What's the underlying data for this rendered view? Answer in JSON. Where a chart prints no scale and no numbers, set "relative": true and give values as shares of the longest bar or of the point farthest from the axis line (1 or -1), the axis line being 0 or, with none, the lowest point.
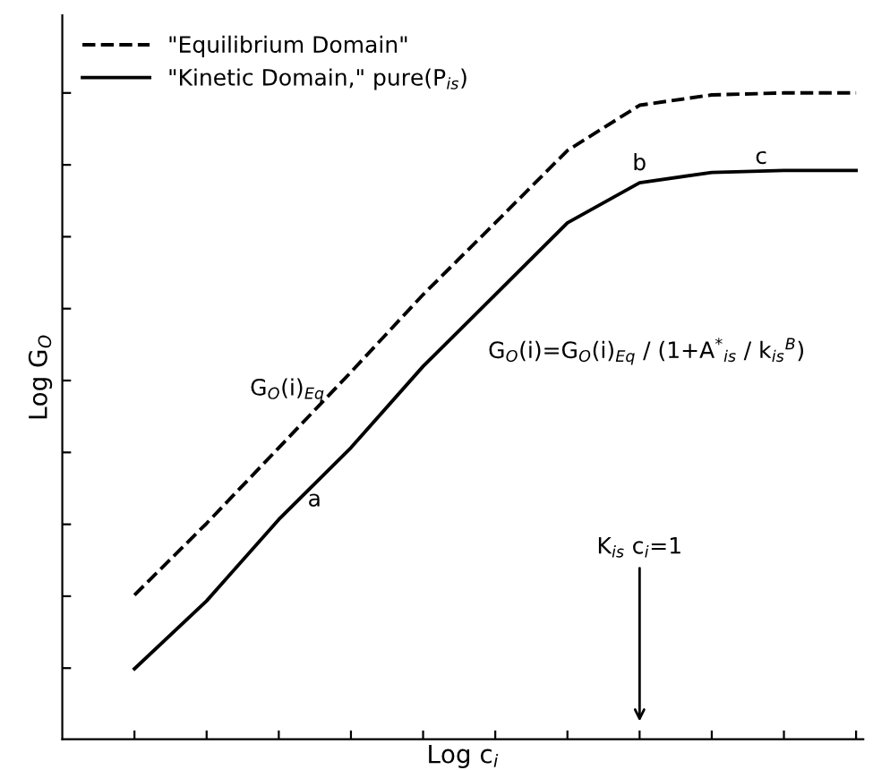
{
  "chart_data": {
    "type": "line",
    "relative": true,
    "xlabel": "Log c$_{i}$",
    "ylabel": "Log G$_{O}$",
    "categories": [
      null,
      null,
      null,
      null,
      null,
      null,
      null,
      null,
      null,
      null,
      null
    ],
    "series": [
      {
        "name": "\"Equilibrium Domain\"",
        "color": "#000000",
        "line_style": "dashed",
        "values": [
          0.223,
          0.334,
          0.451,
          0.568,
          0.688,
          0.799,
          0.911,
          0.981,
          0.997,
          1,
          1
        ]
      },
      {
        "name": "\"Kinetic Domain,\" pure(P$_{is}$)",
        "color": "#000000",
        "line_style": "solid",
        "values": [
          0.109,
          0.214,
          0.34,
          0.451,
          0.577,
          0.688,
          0.799,
          0.861,
          0.877,
          0.88,
          0.88
        ]
      }
    ],
    "annotations": [
      "G$_{O}$(i)$_{Eq}$",
      "a",
      "b",
      "c",
      "G$_{O}$(i)=G$_{O}$(i)$_{Eq}$ / (1+A$^{*}$$_{is}$ / k$_{is}$$^{B}$)",
      "K$_{is}$ c$_{i}$=1"
    ],
    "legend": "top left",
    "tick_labels": false,
    "grid": false,
    "marker": "none"
  }
}
